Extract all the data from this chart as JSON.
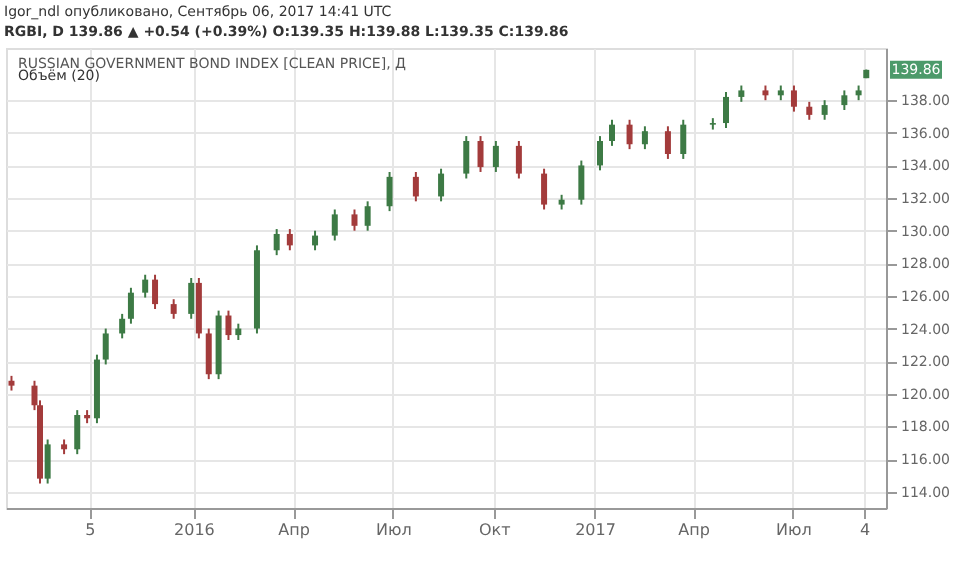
{
  "chart_data": {
    "type": "candlestick",
    "title": "RUSSIAN GOVERNMENT BOND INDEX [CLEAN PRICE], Д",
    "annotations": [
      "Igor_ndl опубликовано, Сентябрь 06, 2017 14:41 UTC",
      "RGBI, D 139.86 ▲ +0.54 (+0.39%) O:139.35 H:139.88 L:139.35 C:139.86",
      "Объём (20)",
      {
        "text": "139.86",
        "y": 139.86
      }
    ],
    "x": [
      "2015-07-19",
      "2015-08-09",
      "2015-08-14",
      "2015-08-21",
      "2015-09-05",
      "2015-09-17",
      "2015-09-26",
      "2015-10-05",
      "2015-10-13",
      "2015-10-28",
      "2015-11-05",
      "2015-11-18",
      "2015-11-27",
      "2015-12-14",
      "2015-12-30",
      "2016-01-06",
      "2016-01-15",
      "2016-01-24",
      "2016-02-02",
      "2016-02-11",
      "2016-02-28",
      "2016-03-17",
      "2016-03-29",
      "2016-04-21",
      "2016-05-09",
      "2016-05-27",
      "2016-06-08",
      "2016-06-28",
      "2016-07-22",
      "2016-08-14",
      "2016-09-06",
      "2016-09-19",
      "2016-10-03",
      "2016-10-24",
      "2016-11-16",
      "2016-12-02",
      "2016-12-20",
      "2017-01-06",
      "2017-01-17",
      "2017-02-02",
      "2017-02-16",
      "2017-03-09",
      "2017-03-23",
      "2017-04-19",
      "2017-05-01",
      "2017-05-15",
      "2017-06-06",
      "2017-06-20",
      "2017-07-02",
      "2017-07-16",
      "2017-07-30",
      "2017-08-17",
      "2017-08-30",
      "2017-09-06"
    ],
    "ohlc": [
      [
        120.8,
        121.1,
        120.2,
        120.5
      ],
      [
        120.5,
        120.8,
        119.0,
        119.3
      ],
      [
        119.3,
        119.6,
        114.5,
        114.8
      ],
      [
        114.8,
        117.2,
        114.5,
        116.9
      ],
      [
        116.9,
        117.2,
        116.3,
        116.6
      ],
      [
        116.6,
        119.0,
        116.3,
        118.7
      ],
      [
        118.7,
        119.0,
        118.2,
        118.5
      ],
      [
        118.5,
        122.4,
        118.2,
        122.1
      ],
      [
        122.1,
        124.0,
        121.8,
        123.7
      ],
      [
        123.7,
        124.9,
        123.4,
        124.6
      ],
      [
        124.6,
        126.5,
        124.3,
        126.2
      ],
      [
        126.2,
        127.3,
        125.9,
        127.0
      ],
      [
        127.0,
        127.3,
        125.2,
        125.5
      ],
      [
        125.5,
        125.8,
        124.6,
        124.9
      ],
      [
        124.9,
        127.1,
        124.6,
        126.8
      ],
      [
        126.8,
        127.1,
        123.4,
        123.7
      ],
      [
        123.7,
        124.0,
        120.9,
        121.2
      ],
      [
        121.2,
        125.1,
        120.9,
        124.8
      ],
      [
        124.8,
        125.1,
        123.3,
        123.6
      ],
      [
        123.6,
        124.3,
        123.3,
        124.0
      ],
      [
        124.0,
        129.1,
        123.7,
        128.8
      ],
      [
        128.8,
        130.1,
        128.5,
        129.8
      ],
      [
        129.8,
        130.1,
        128.8,
        129.1
      ],
      [
        129.1,
        130.0,
        128.8,
        129.7
      ],
      [
        129.7,
        131.3,
        129.4,
        131.0
      ],
      [
        131.0,
        131.3,
        130.0,
        130.3
      ],
      [
        130.3,
        131.8,
        130.0,
        131.5
      ],
      [
        131.5,
        133.6,
        131.2,
        133.3
      ],
      [
        133.3,
        133.6,
        131.8,
        132.1
      ],
      [
        132.1,
        133.8,
        131.8,
        133.5
      ],
      [
        133.5,
        135.8,
        133.2,
        135.5
      ],
      [
        135.5,
        135.8,
        133.6,
        133.9
      ],
      [
        133.9,
        135.5,
        133.6,
        135.2
      ],
      [
        135.2,
        135.5,
        133.2,
        133.5
      ],
      [
        133.5,
        133.8,
        131.3,
        131.6
      ],
      [
        131.6,
        132.2,
        131.3,
        131.9
      ],
      [
        131.9,
        134.3,
        131.6,
        134.0
      ],
      [
        134.0,
        135.8,
        133.7,
        135.5
      ],
      [
        135.5,
        136.8,
        135.2,
        136.5
      ],
      [
        136.5,
        136.8,
        135.0,
        135.3
      ],
      [
        135.3,
        136.4,
        135.0,
        136.1
      ],
      [
        136.1,
        136.4,
        134.4,
        134.7
      ],
      [
        134.7,
        136.8,
        134.4,
        136.5
      ],
      [
        136.5,
        136.9,
        136.2,
        136.6
      ],
      [
        136.6,
        138.5,
        136.3,
        138.2
      ],
      [
        138.2,
        138.9,
        137.9,
        138.6
      ],
      [
        138.6,
        138.9,
        138.0,
        138.3
      ],
      [
        138.3,
        138.9,
        138.0,
        138.6
      ],
      [
        138.6,
        138.9,
        137.3,
        137.6
      ],
      [
        137.6,
        137.9,
        136.8,
        137.1
      ],
      [
        137.1,
        138.0,
        136.8,
        137.7
      ],
      [
        137.7,
        138.6,
        137.4,
        138.3
      ],
      [
        138.3,
        138.9,
        138.0,
        138.6
      ],
      [
        139.35,
        139.88,
        139.35,
        139.86
      ]
    ],
    "colors": [
      "#a33b3b",
      "#a33b3b",
      "#a33b3b",
      "#3d7a45",
      "#a33b3b",
      "#3d7a45",
      "#a33b3b",
      "#3d7a45",
      "#3d7a45",
      "#3d7a45",
      "#3d7a45",
      "#3d7a45",
      "#a33b3b",
      "#a33b3b",
      "#3d7a45",
      "#a33b3b",
      "#a33b3b",
      "#3d7a45",
      "#a33b3b",
      "#3d7a45",
      "#3d7a45",
      "#3d7a45",
      "#a33b3b",
      "#3d7a45",
      "#3d7a45",
      "#a33b3b",
      "#3d7a45",
      "#3d7a45",
      "#a33b3b",
      "#3d7a45",
      "#3d7a45",
      "#a33b3b",
      "#3d7a45",
      "#a33b3b",
      "#a33b3b",
      "#3d7a45",
      "#3d7a45",
      "#3d7a45",
      "#3d7a45",
      "#a33b3b",
      "#3d7a45",
      "#a33b3b",
      "#3d7a45",
      "#3d7a45",
      "#3d7a45",
      "#3d7a45",
      "#a33b3b",
      "#3d7a45",
      "#a33b3b",
      "#a33b3b",
      "#3d7a45",
      "#3d7a45",
      "#3d7a45",
      "#3d7a45"
    ],
    "xlim": [
      "2015-07-14",
      "2017-09-24"
    ],
    "xticks": [
      {
        "value": "2015-09-28",
        "label": "5"
      },
      {
        "value": "2016-01-01",
        "label": "2016"
      },
      {
        "value": "2016-04-01",
        "label": "Апр"
      },
      {
        "value": "2016-07-01",
        "label": "Июл"
      },
      {
        "value": "2016-10-01",
        "label": "Окт"
      },
      {
        "value": "2017-01-01",
        "label": "2017"
      },
      {
        "value": "2017-04-01",
        "label": "Апр"
      },
      {
        "value": "2017-07-01",
        "label": "Июл"
      },
      {
        "value": "2017-09-04",
        "label": "4"
      }
    ],
    "ylim": [
      113,
      141.2
    ],
    "yticks": [
      {
        "value": 114,
        "label": "114.00"
      },
      {
        "value": 116,
        "label": "116.00"
      },
      {
        "value": 118,
        "label": "118.00"
      },
      {
        "value": 120,
        "label": "120.00"
      },
      {
        "value": 122,
        "label": "122.00"
      },
      {
        "value": 124,
        "label": "124.00"
      },
      {
        "value": 126,
        "label": "126.00"
      },
      {
        "value": 128,
        "label": "128.00"
      },
      {
        "value": 130,
        "label": "130.00"
      },
      {
        "value": 132,
        "label": "132.00"
      },
      {
        "value": 134,
        "label": "134.00"
      },
      {
        "value": 136,
        "label": "136.00"
      },
      {
        "value": 138,
        "label": "138.00"
      }
    ],
    "grid": true
  }
}
